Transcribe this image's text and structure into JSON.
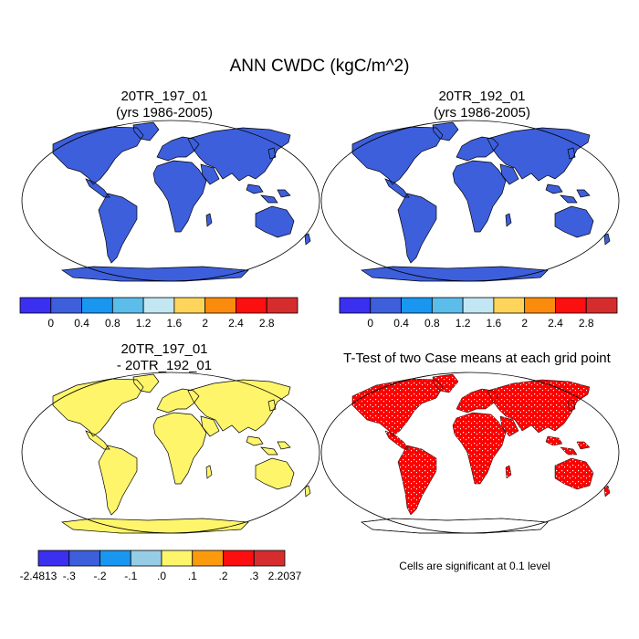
{
  "title": "ANN CWDC (kgC/m^2)",
  "panels": [
    {
      "title_line1": "20TR_197_01",
      "title_line2": "(yrs 1986-2005)"
    },
    {
      "title_line1": "20TR_192_01",
      "title_line2": "(yrs 1986-2005)"
    },
    {
      "title_line1": "20TR_197_01",
      "title_line2": "- 20TR_192_01"
    },
    {
      "title_line1": "T-Test of two Case means at each grid point",
      "title_line2": ""
    }
  ],
  "colorbar_abs": {
    "colors": [
      "#3b2ff0",
      "#3d5fdc",
      "#1997f0",
      "#5cbcea",
      "#c2e6f2",
      "#fed45a",
      "#fb8b0c",
      "#fb0f0f",
      "#d52d2d"
    ],
    "labels": [
      "0",
      "0.4",
      "0.8",
      "1.2",
      "1.6",
      "2",
      "2.4",
      "2.8"
    ]
  },
  "colorbar_diff": {
    "colors": [
      "#3b2ff0",
      "#3d5fdc",
      "#1997f0",
      "#96cce6",
      "#fff56a",
      "#fb9a0c",
      "#fb0f0f",
      "#d52d2d"
    ],
    "labels": [
      "-2.4813",
      "-.3",
      "-.2",
      "-.1",
      ".0",
      ".1",
      ".2",
      ".3",
      "2.2037"
    ]
  },
  "significance_note": "Cells are significant at 0.1 level"
}
